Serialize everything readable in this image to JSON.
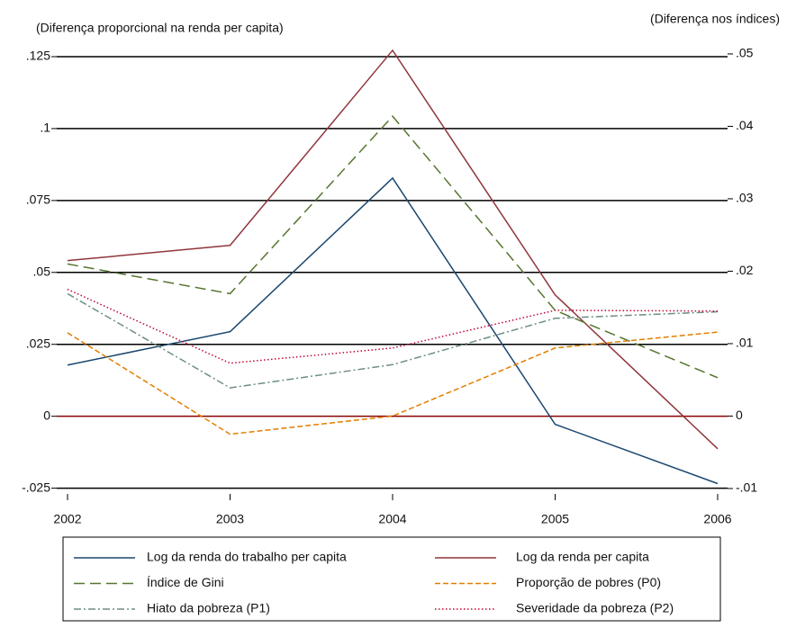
{
  "chart_data": {
    "type": "line",
    "y_label": "(Diferença proporcional na renda per capita)",
    "y2_label": "(Diferença nos índices)",
    "x": [
      2002,
      2003,
      2004,
      2005,
      2006
    ],
    "xlim": [
      2002,
      2006
    ],
    "xticks": [
      2002,
      2003,
      2004,
      2005,
      2006
    ],
    "ylim": [
      -0.027,
      0.132
    ],
    "yticks": [
      {
        "value": -0.025,
        "label": "-.025"
      },
      0,
      {
        "value": 0.025,
        "label": ".025"
      },
      {
        "value": 0.05,
        "label": ".05"
      },
      {
        "value": 0.075,
        "label": ".075"
      },
      {
        "value": 0.1,
        "label": ".1"
      },
      {
        "value": 0.125,
        "label": ".125"
      }
    ],
    "y2lim": [
      -0.0108,
      0.0528
    ],
    "y2ticks": [
      {
        "value": -0.01,
        "label": "-.01"
      },
      0,
      {
        "value": 0.01,
        "label": ".01"
      },
      {
        "value": 0.02,
        "label": ".02"
      },
      {
        "value": 0.03,
        "label": ".03"
      },
      {
        "value": 0.04,
        "label": ".04"
      },
      {
        "value": 0.05,
        "label": ".05"
      }
    ],
    "grid": true,
    "grid_color": "#000000",
    "zero_line_color": "#8b0000",
    "series": [
      {
        "name": "Log da renda do trabalho per capita",
        "color": "#1a476f",
        "dash": "none",
        "values": [
          0.0178,
          0.0294,
          0.0828,
          -0.0028,
          -0.0234
        ]
      },
      {
        "name": "Log da renda per capita",
        "color": "#90353b",
        "dash": "none",
        "values": [
          0.0541,
          0.0594,
          0.1272,
          0.0422,
          -0.0113
        ]
      },
      {
        "name": "Índice de Gini",
        "color": "#55752f",
        "dash": "12 6",
        "axis": "y2",
        "values": [
          0.021,
          0.0169,
          0.0414,
          0.0146,
          0.0053
        ]
      },
      {
        "name": "Proporção de pobres (P0)",
        "color": "#e37e00",
        "dash": "6 3",
        "axis": "y2",
        "values": [
          0.0115,
          -0.0025,
          0,
          0.0094,
          0.0116
        ]
      },
      {
        "name": "Hiato da pobreza (P1)",
        "color": "#6e8e84",
        "dash": "8 3 2 3",
        "axis": "y2",
        "values": [
          0.0169,
          0.0039,
          0.0071,
          0.0135,
          0.0144
        ]
      },
      {
        "name": "Severidade da pobreza (P2)",
        "color": "#c10534",
        "dash": "1.5 2.5",
        "axis": "y2",
        "values": [
          0.0175,
          0.0073,
          0.0094,
          0.0146,
          0.0145
        ]
      }
    ]
  }
}
